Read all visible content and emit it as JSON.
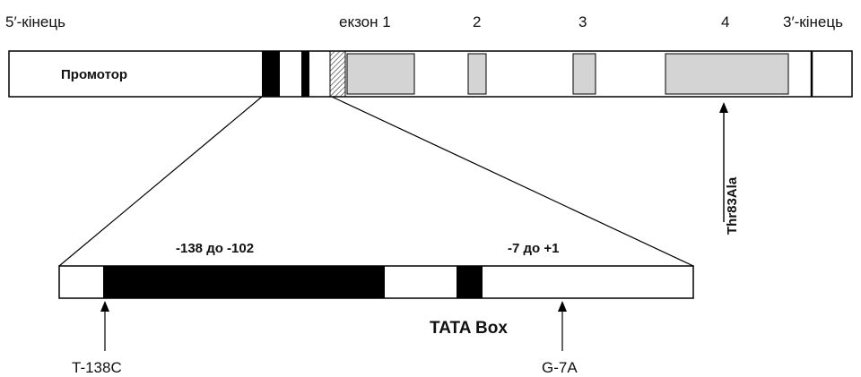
{
  "labels": {
    "five_prime": "5′-кінець",
    "exon1": "екзон  1",
    "exon2": "2",
    "exon3": "3",
    "exon4": "4",
    "three_prime": "3′-кінець",
    "promoter": "Промотор",
    "mutation_exon4": "Thr83Ala",
    "region1": "-138 до -102",
    "region2": "-7 до +1",
    "tata_box": "TATA Box",
    "snp1": "T-138C",
    "snp2": "G-7A"
  },
  "colors": {
    "exon_fill": "#d4d4d4",
    "element_fill": "#000000",
    "line": "#000000"
  }
}
